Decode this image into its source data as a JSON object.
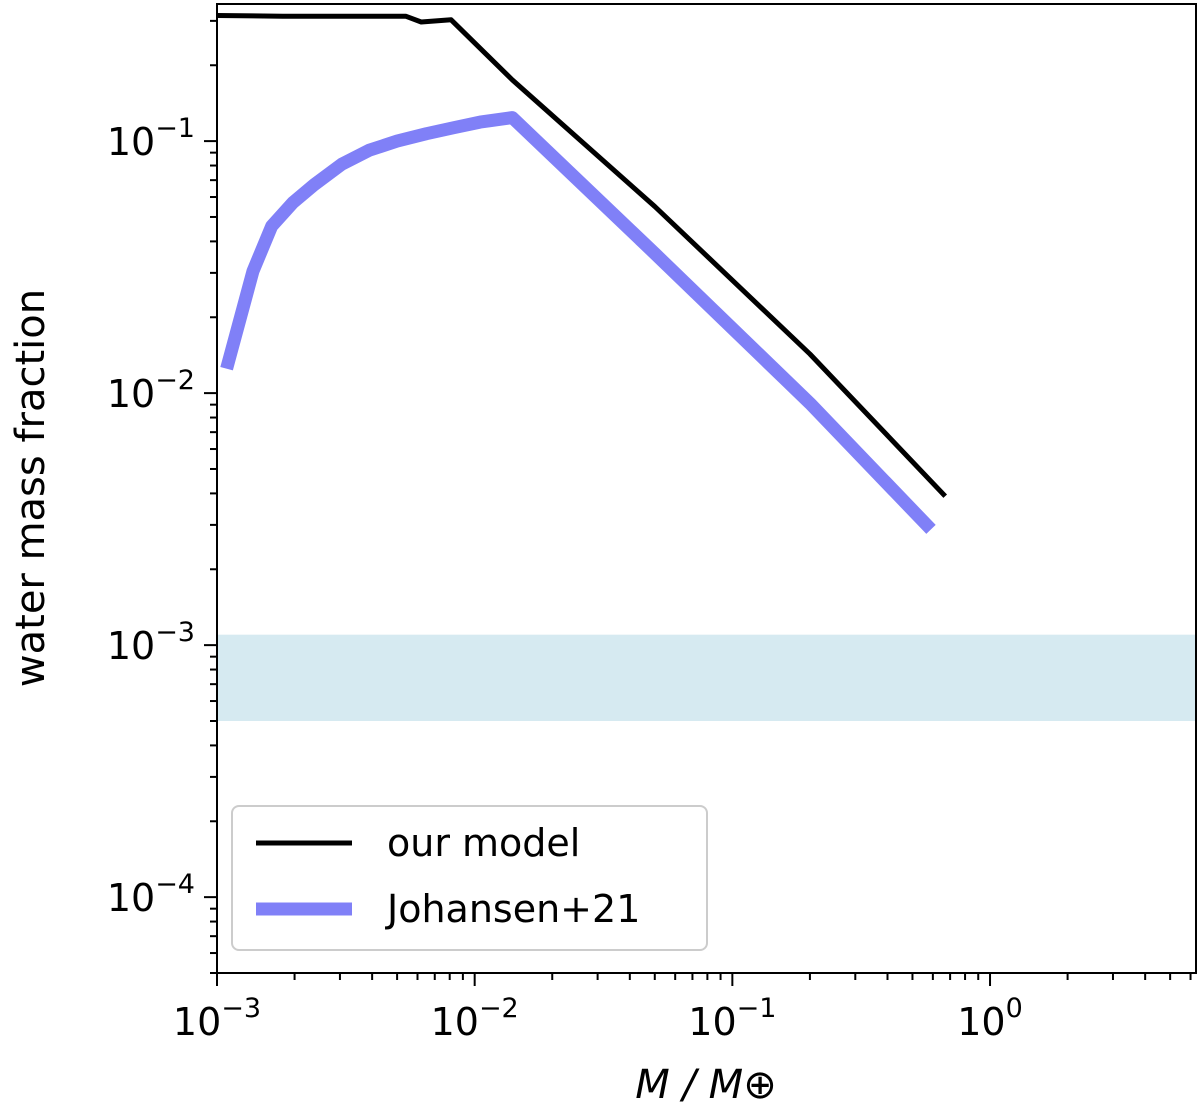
{
  "chart_data": {
    "type": "line",
    "xlabel": "M / M⊕",
    "ylabel": "water mass fraction",
    "xscale": "log",
    "yscale": "log",
    "xlim": [
      0.001,
      6.3
    ],
    "ylim": [
      5e-05,
      0.35
    ],
    "grid": false,
    "legend_position": "lower-left",
    "x_ticks": [
      {
        "value": 0.001,
        "base": "10",
        "exp": "−3"
      },
      {
        "value": 0.01,
        "base": "10",
        "exp": "−2"
      },
      {
        "value": 0.1,
        "base": "10",
        "exp": "−1"
      },
      {
        "value": 1,
        "base": "10",
        "exp": "0"
      }
    ],
    "y_ticks": [
      {
        "value": 0.0001,
        "base": "10",
        "exp": "−4"
      },
      {
        "value": 0.001,
        "base": "10",
        "exp": "−3"
      },
      {
        "value": 0.01,
        "base": "10",
        "exp": "−2"
      },
      {
        "value": 0.1,
        "base": "10",
        "exp": "−1"
      }
    ],
    "shaded_band": {
      "y_low": 0.0005,
      "y_high": 0.0011,
      "color": "#d6eaf1"
    },
    "series": [
      {
        "name": "our model",
        "color": "#000000",
        "x": [
          0.001,
          0.0018,
          0.0054,
          0.0062,
          0.0081,
          0.014,
          0.05,
          0.2,
          0.67
        ],
        "y": [
          0.315,
          0.313,
          0.313,
          0.297,
          0.303,
          0.175,
          0.055,
          0.0143,
          0.0039
        ]
      },
      {
        "name": "Johansen+21",
        "color": "#8080f7",
        "x": [
          0.00109,
          0.00138,
          0.00163,
          0.00197,
          0.00238,
          0.00305,
          0.0039,
          0.005,
          0.0065,
          0.0083,
          0.0105,
          0.014,
          0.05,
          0.2,
          0.59
        ],
        "y": [
          0.0125,
          0.0305,
          0.046,
          0.057,
          0.067,
          0.081,
          0.092,
          0.1,
          0.107,
          0.113,
          0.119,
          0.124,
          0.0358,
          0.00911,
          0.00288
        ]
      }
    ]
  }
}
